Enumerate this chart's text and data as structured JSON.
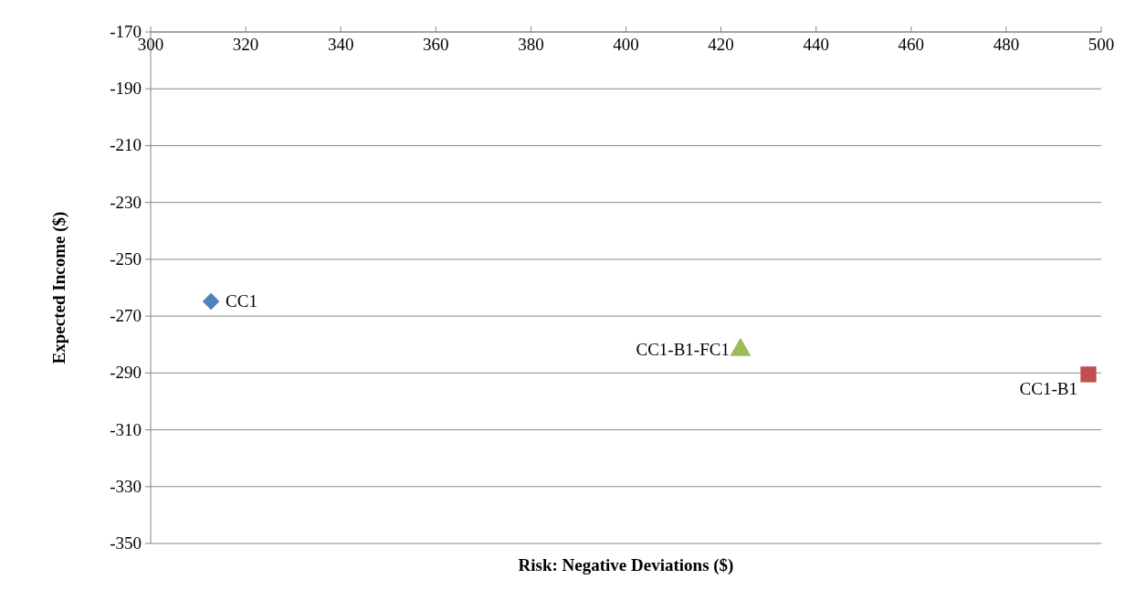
{
  "chart_data": {
    "type": "scatter",
    "xlabel": "Risk: Negative Deviations ($)",
    "ylabel": "Expected Income ($)",
    "xlim": [
      300,
      500
    ],
    "xticks": [
      300,
      320,
      340,
      360,
      380,
      400,
      420,
      440,
      460,
      480,
      500
    ],
    "ylim": [
      -350,
      -170
    ],
    "yticks": [
      -350,
      -330,
      -310,
      -290,
      -270,
      -250,
      -230,
      -210,
      -190,
      -170
    ],
    "grid": "y",
    "series": [
      {
        "name": "CC1",
        "color": "#4f81bd",
        "marker": "diamond",
        "x": [
          312.7
        ],
        "values": [
          -264.8
        ]
      },
      {
        "name": "CC1-B1",
        "color": "#c0504d",
        "marker": "square",
        "x": [
          497.3
        ],
        "values": [
          -290.5
        ]
      },
      {
        "name": "CC1-B1-FC1",
        "color": "#9bbb59",
        "marker": "triangle",
        "x": [
          424.1
        ],
        "values": [
          -281.9
        ]
      }
    ]
  }
}
